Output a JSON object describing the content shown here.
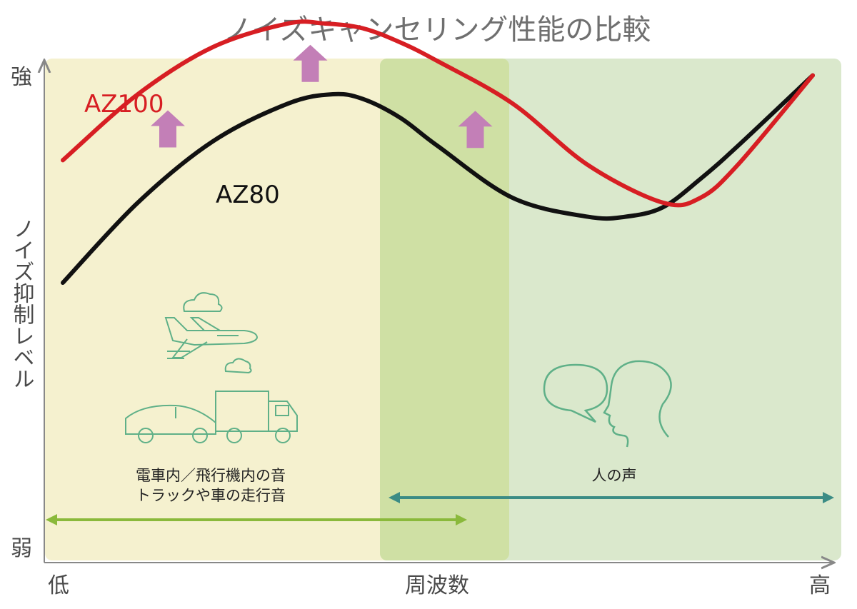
{
  "chart_data": {
    "type": "line",
    "title": "ノイズキャンセリング性能の比較",
    "xlabel": "周波数",
    "ylabel": "ノイズ抑制レベル",
    "x_ticks": {
      "low": "低",
      "high": "高"
    },
    "y_ticks": {
      "high": "強",
      "low": "弱"
    },
    "xlim": [
      0,
      1
    ],
    "ylim": [
      0,
      1
    ],
    "grid": false,
    "legend": "inline labels",
    "series": [
      {
        "name": "AZ100",
        "color": "#d71e23",
        "x": [
          0.0,
          0.1,
          0.2,
          0.3,
          0.35,
          0.4,
          0.45,
          0.5,
          0.6,
          0.7,
          0.8,
          0.85,
          0.9,
          1.0
        ],
        "y": [
          0.66,
          0.8,
          0.9,
          0.95,
          0.95,
          0.94,
          0.91,
          0.87,
          0.78,
          0.65,
          0.57,
          0.58,
          0.65,
          0.84
        ]
      },
      {
        "name": "AZ80",
        "color": "#111111",
        "x": [
          0.0,
          0.1,
          0.2,
          0.3,
          0.36,
          0.4,
          0.45,
          0.5,
          0.6,
          0.7,
          0.75,
          0.8,
          0.85,
          0.9,
          1.0
        ],
        "y": [
          0.4,
          0.57,
          0.7,
          0.78,
          0.8,
          0.79,
          0.75,
          0.69,
          0.58,
          0.54,
          0.54,
          0.56,
          0.62,
          0.69,
          0.84
        ]
      }
    ],
    "bands": [
      {
        "label_line1": "電車内／飛行機内の音",
        "label_line2": "トラックや車の走行音",
        "color": "#f5f1cf",
        "range": [
          0.0,
          0.6
        ]
      },
      {
        "label_line1": "人の声",
        "label_line2": "",
        "color": "#d9e8cd",
        "range": [
          0.45,
          1.0
        ]
      }
    ],
    "improvement_arrows": {
      "color": "#c37fb7",
      "count": 3
    }
  }
}
